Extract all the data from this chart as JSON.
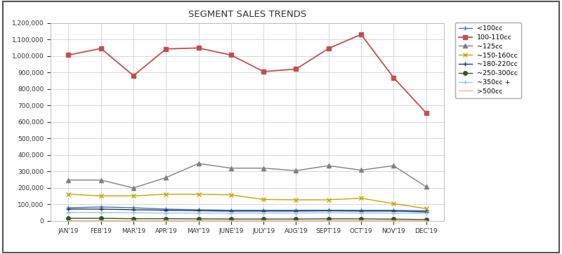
{
  "title": "SEGMENT SALES TRENDS",
  "months": [
    "JAN'19",
    "FEB'19",
    "MAR'19",
    "APR'19",
    "MAY'19",
    "JUNE'19",
    "JULY'19",
    "AUG'19",
    "SEPT'19",
    "OCT'19",
    "NOV'19",
    "DEC'19"
  ],
  "series": [
    {
      "label": "<100cc",
      "color": "#4472C4",
      "marker": "+",
      "linestyle": "-",
      "linewidth": 1.0,
      "markersize": 5,
      "data": [
        80000,
        85000,
        80000,
        72000,
        68000,
        65000,
        65000,
        65000,
        65000,
        65000,
        65000,
        62000
      ]
    },
    {
      "label": "100-110cc",
      "color": "#C0504D",
      "marker": "s",
      "linestyle": "-",
      "linewidth": 1.3,
      "markersize": 5,
      "data": [
        1005000,
        1045000,
        880000,
        1042000,
        1048000,
        1005000,
        905000,
        920000,
        1045000,
        1130000,
        868000,
        655000
      ]
    },
    {
      "label": "~125cc",
      "color": "#808080",
      "marker": "^",
      "linestyle": "-",
      "linewidth": 1.0,
      "markersize": 5,
      "data": [
        248000,
        248000,
        200000,
        263000,
        348000,
        320000,
        320000,
        305000,
        335000,
        308000,
        335000,
        207000
      ]
    },
    {
      "label": "~150-160cc",
      "color": "#C8A400",
      "marker": "x",
      "linestyle": "-",
      "linewidth": 1.0,
      "markersize": 5,
      "data": [
        162000,
        152000,
        152000,
        162000,
        162000,
        158000,
        130000,
        128000,
        128000,
        138000,
        105000,
        75000
      ]
    },
    {
      "label": "~180-220cc",
      "color": "#1F3864",
      "marker": "+",
      "linestyle": "-",
      "linewidth": 1.0,
      "markersize": 5,
      "data": [
        72000,
        72000,
        68000,
        65000,
        62000,
        60000,
        60000,
        60000,
        62000,
        60000,
        60000,
        55000
      ]
    },
    {
      "label": "~250-300cc",
      "color": "#375623",
      "marker": "o",
      "linestyle": "-",
      "linewidth": 1.0,
      "markersize": 4,
      "data": [
        16000,
        16000,
        14000,
        14000,
        13000,
        12000,
        12000,
        12000,
        13000,
        13000,
        11000,
        9000
      ]
    },
    {
      "label": "~350cc +",
      "color": "#9DC3E6",
      "marker": "+",
      "linestyle": "-",
      "linewidth": 1.0,
      "markersize": 5,
      "data": [
        52000,
        52000,
        50000,
        48000,
        48000,
        48000,
        48000,
        48000,
        50000,
        48000,
        48000,
        46000
      ]
    },
    {
      "label": ">500cc",
      "color": "#F4B183",
      "marker": "None",
      "linestyle": "-",
      "linewidth": 1.0,
      "markersize": 0,
      "data": [
        4000,
        4000,
        4000,
        4000,
        4000,
        4000,
        4000,
        4000,
        4000,
        4000,
        4000,
        4000
      ]
    }
  ],
  "ylim": [
    0,
    1200000
  ],
  "yticks": [
    0,
    100000,
    200000,
    300000,
    400000,
    500000,
    600000,
    700000,
    800000,
    900000,
    1000000,
    1100000,
    1200000
  ],
  "background_color": "#FFFFFF",
  "plot_bg_color": "#FFFFFF",
  "grid_color": "#D0D0D0",
  "border_color": "#404040",
  "title_fontsize": 9.5,
  "tick_fontsize": 6.5,
  "legend_fontsize": 6.8
}
